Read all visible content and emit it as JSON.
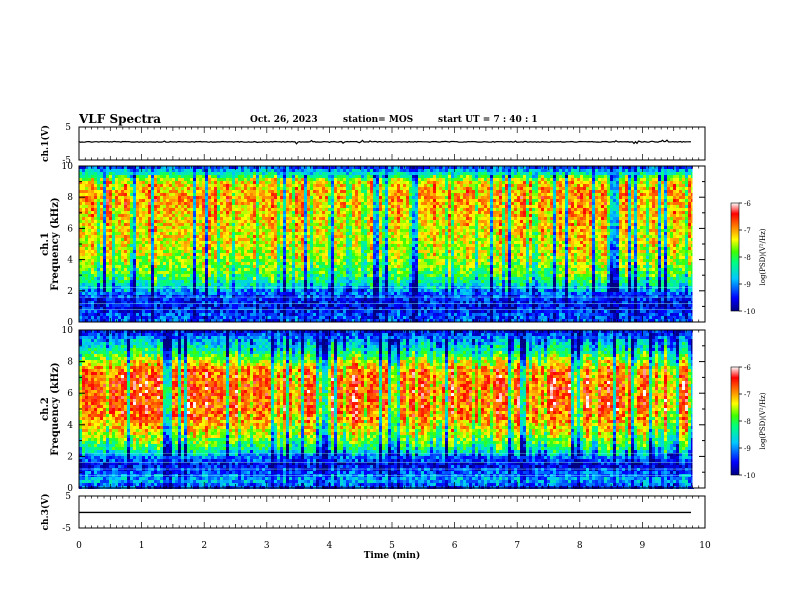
{
  "header": {
    "title": "VLF Spectra",
    "date": "Oct. 26, 2023",
    "station": "station= MOS",
    "start_ut": "start  UT  =   7 : 40 : 1"
  },
  "chart_data": [
    {
      "type": "line",
      "panel": "ch1-waveform",
      "ylabel": "ch.1(V)",
      "ylim": [
        -5,
        5
      ],
      "yticks": [
        "5",
        "-5"
      ],
      "xlim": [
        0,
        10
      ],
      "series": [
        {
          "values": [
            0,
            0
          ]
        }
      ]
    },
    {
      "type": "heatmap",
      "panel": "ch1-spectrogram",
      "ylabel": "ch.1  Frequency (kHz)",
      "ylim": [
        0,
        10
      ],
      "yticks": [
        "0",
        "2",
        "4",
        "6",
        "8",
        "10"
      ],
      "xlim": [
        0,
        10
      ],
      "data_end_min": 9.8,
      "colorbar": {
        "label": "log(PSD)(V²/Hz)",
        "range": [
          -10,
          -6
        ],
        "ticks": [
          "-6",
          "-7",
          "-8",
          "-9",
          "-10"
        ]
      },
      "profile": [
        {
          "f": 0.0,
          "v": -9.2
        },
        {
          "f": 0.5,
          "v": -9.3
        },
        {
          "f": 1.0,
          "v": -9.6
        },
        {
          "f": 1.5,
          "v": -9.4
        },
        {
          "f": 2.0,
          "v": -9.0
        },
        {
          "f": 2.5,
          "v": -8.4
        },
        {
          "f": 3.0,
          "v": -8.0
        },
        {
          "f": 4.0,
          "v": -7.6
        },
        {
          "f": 5.0,
          "v": -7.4
        },
        {
          "f": 6.0,
          "v": -7.3
        },
        {
          "f": 7.0,
          "v": -7.2
        },
        {
          "f": 8.0,
          "v": -7.0
        },
        {
          "f": 9.0,
          "v": -7.3
        },
        {
          "f": 9.5,
          "v": -8.4
        },
        {
          "f": 10.0,
          "v": -9.4
        }
      ]
    },
    {
      "type": "heatmap",
      "panel": "ch2-spectrogram",
      "ylabel": "ch.2  Frequency (kHz)",
      "ylim": [
        0,
        10
      ],
      "yticks": [
        "0",
        "2",
        "4",
        "6",
        "8",
        "10"
      ],
      "xlim": [
        0,
        10
      ],
      "data_end_min": 9.8,
      "colorbar": {
        "label": "log(PSD)(V²/Hz)",
        "range": [
          -10,
          -6
        ],
        "ticks": [
          "-6",
          "-7",
          "-8",
          "-9",
          "-10"
        ]
      },
      "profile": [
        {
          "f": 0.0,
          "v": -9.3
        },
        {
          "f": 0.5,
          "v": -8.8
        },
        {
          "f": 1.0,
          "v": -9.2
        },
        {
          "f": 1.5,
          "v": -9.6
        },
        {
          "f": 2.0,
          "v": -9.0
        },
        {
          "f": 2.5,
          "v": -8.2
        },
        {
          "f": 3.5,
          "v": -7.4
        },
        {
          "f": 4.5,
          "v": -6.9
        },
        {
          "f": 5.5,
          "v": -6.7
        },
        {
          "f": 6.5,
          "v": -6.7
        },
        {
          "f": 7.5,
          "v": -6.9
        },
        {
          "f": 8.2,
          "v": -7.7
        },
        {
          "f": 8.8,
          "v": -8.4
        },
        {
          "f": 9.4,
          "v": -8.9
        },
        {
          "f": 10.0,
          "v": -9.6
        }
      ]
    },
    {
      "type": "line",
      "panel": "ch3-waveform",
      "ylabel": "ch.3(V)",
      "ylim": [
        -5,
        5
      ],
      "yticks": [
        "5",
        "-5"
      ],
      "xlim": [
        0,
        10
      ],
      "xlabel": "Time  (min)",
      "xticks": [
        "0",
        "1",
        "2",
        "3",
        "4",
        "5",
        "6",
        "7",
        "8",
        "9",
        "10"
      ],
      "series": [
        {
          "values": [
            0,
            0
          ]
        }
      ]
    }
  ],
  "colors": {
    "colormap": [
      "#000080",
      "#0000ff",
      "#00c8ff",
      "#00ff80",
      "#40ff00",
      "#ffff00",
      "#ff8000",
      "#ff0000",
      "#ffffff"
    ]
  }
}
